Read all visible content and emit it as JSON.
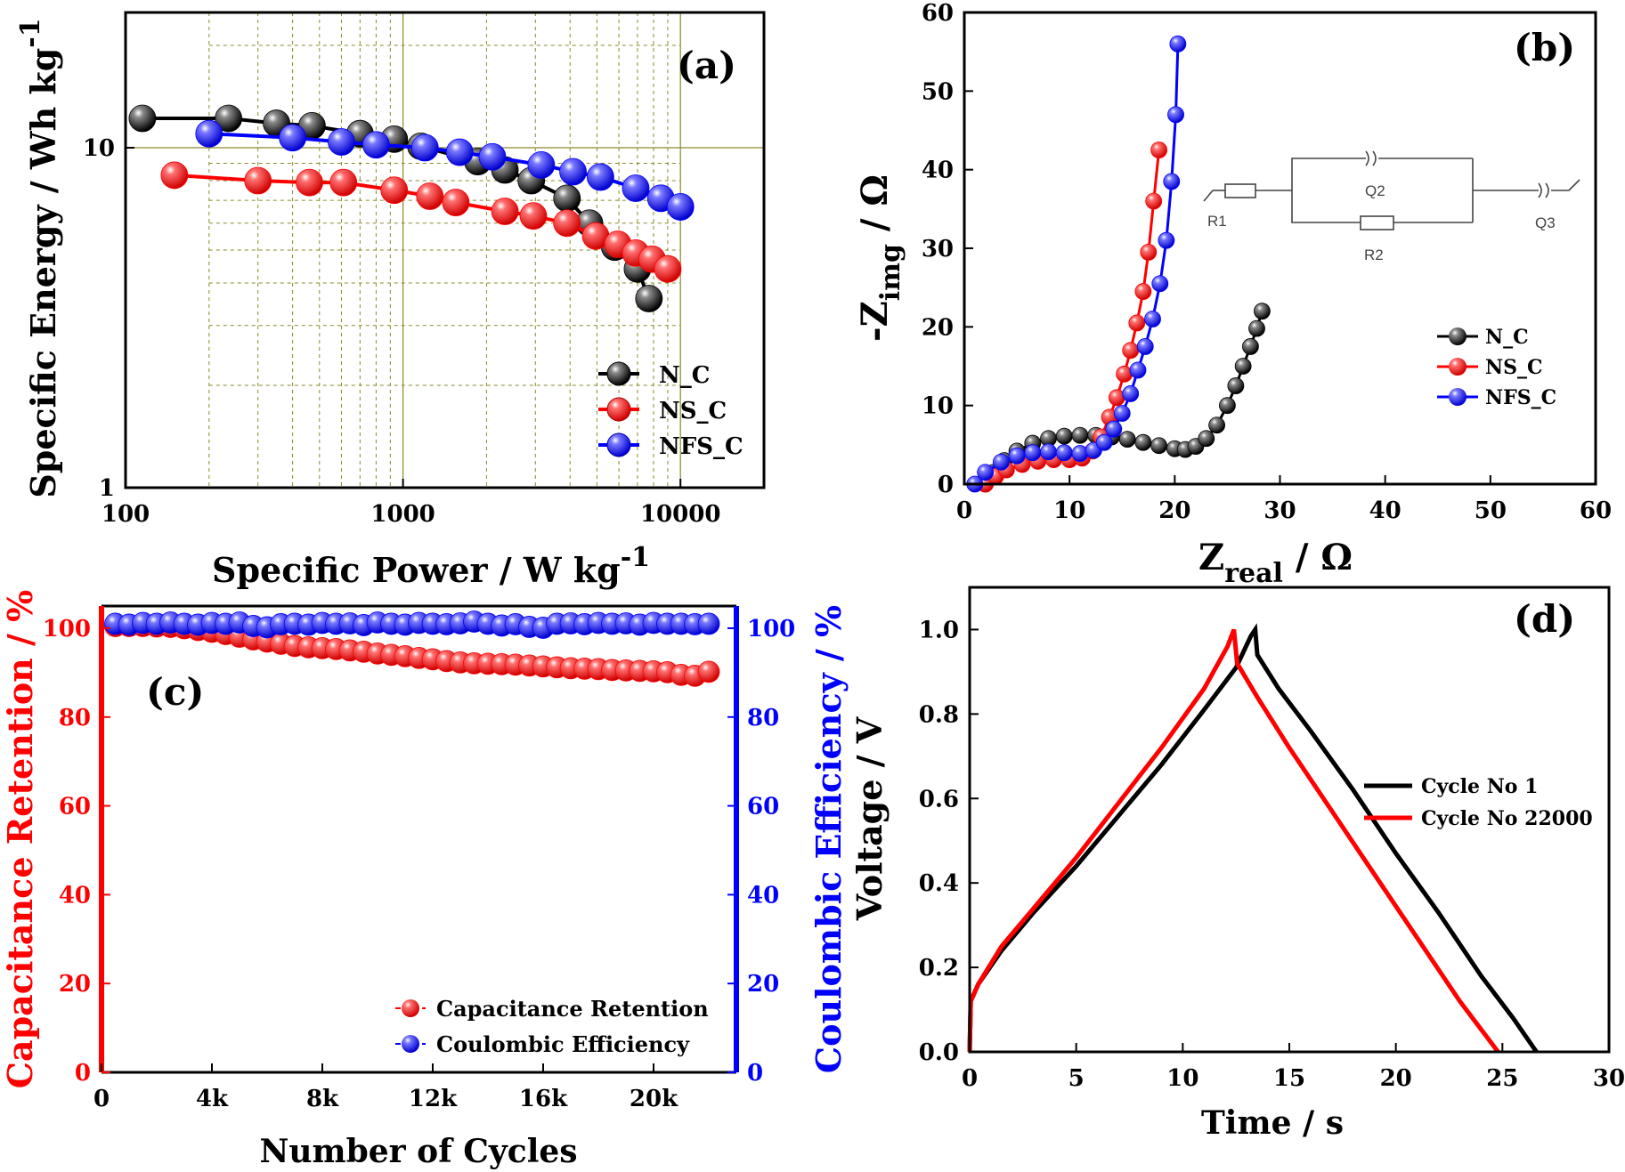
{
  "chart_data": [
    {
      "id": "a",
      "type": "scatter",
      "panel_label": "(a)",
      "xlabel": "Specific Power / W kg",
      "xlabel_sup": "-1",
      "ylabel": "Specific Energy / Wh kg",
      "ylabel_sup": "-1",
      "xscale": "log",
      "yscale": "log",
      "xlim": [
        100,
        20000
      ],
      "ylim": [
        1,
        25
      ],
      "xticks": [
        100,
        1000,
        10000
      ],
      "xtick_labels": [
        "100",
        "1000",
        "10000"
      ],
      "yticks": [
        1,
        10
      ],
      "ytick_labels": [
        "1",
        "10"
      ],
      "grid": true,
      "legend_position": "right",
      "series": [
        {
          "name": "N_C",
          "color": "#000000",
          "x": [
            115,
            235,
            350,
            470,
            700,
            930,
            1160,
            1860,
            2330,
            2900,
            3900,
            4700,
            5800,
            7000,
            7700
          ],
          "y": [
            12.2,
            12.2,
            11.8,
            11.6,
            11.0,
            10.6,
            10.1,
            9.1,
            8.6,
            8.0,
            7.1,
            6.0,
            5.1,
            4.4,
            3.6
          ]
        },
        {
          "name": "NS_C",
          "color": "#ff0000",
          "x": [
            150,
            300,
            460,
            610,
            930,
            1250,
            1550,
            2330,
            2950,
            3900,
            4950,
            5950,
            6900,
            7900,
            9000
          ],
          "y": [
            8.3,
            8.0,
            7.9,
            7.9,
            7.5,
            7.2,
            6.9,
            6.5,
            6.3,
            6.0,
            5.5,
            5.2,
            4.9,
            4.7,
            4.4
          ]
        },
        {
          "name": "NFS_C",
          "color": "#0000ff",
          "x": [
            200,
            400,
            600,
            800,
            1200,
            1600,
            2100,
            3150,
            4100,
            5150,
            6900,
            8500,
            10000
          ],
          "y": [
            11.0,
            10.7,
            10.4,
            10.2,
            10.0,
            9.7,
            9.4,
            8.9,
            8.5,
            8.2,
            7.6,
            7.1,
            6.7
          ]
        }
      ]
    },
    {
      "id": "b",
      "type": "line",
      "panel_label": "(b)",
      "xlabel": "Z",
      "xlabel_sub": "real",
      "xlabel_unit": " / Ω",
      "ylabel": "-Z",
      "ylabel_sub": "img",
      "ylabel_unit": " / Ω",
      "xlim": [
        0,
        60
      ],
      "ylim": [
        0,
        60
      ],
      "xticks": [
        0,
        10,
        20,
        30,
        40,
        50,
        60
      ],
      "yticks": [
        0,
        10,
        20,
        30,
        40,
        50,
        60
      ],
      "legend_position": "right",
      "circuit_labels": [
        "R1",
        "Q2",
        "R2",
        "Q3"
      ],
      "series": [
        {
          "name": "N_C",
          "color": "#000000",
          "x": [
            2.0,
            2.8,
            3.8,
            5.0,
            6.5,
            8.0,
            9.5,
            11.0,
            12.5,
            14.0,
            15.5,
            17.0,
            18.5,
            20.0,
            21.0,
            22.0,
            23.0,
            24.0,
            25.0,
            25.8,
            26.5,
            27.2,
            27.8,
            28.3
          ],
          "y": [
            0,
            1.5,
            3.0,
            4.2,
            5.2,
            5.8,
            6.1,
            6.2,
            6.2,
            6.0,
            5.7,
            5.3,
            4.9,
            4.5,
            4.4,
            4.8,
            5.8,
            7.5,
            10.0,
            12.5,
            15.0,
            17.5,
            19.8,
            22.0
          ]
        },
        {
          "name": "NS_C",
          "color": "#ff0000",
          "x": [
            2.0,
            3.0,
            4.0,
            5.5,
            7.0,
            8.5,
            10.0,
            11.2,
            12.2,
            13.0,
            13.8,
            14.5,
            15.2,
            15.8,
            16.4,
            17.0,
            17.5,
            18.0,
            18.5
          ],
          "y": [
            0,
            1.0,
            1.8,
            2.5,
            2.9,
            3.1,
            3.1,
            3.3,
            4.2,
            6.0,
            8.5,
            11.0,
            14.0,
            17.0,
            20.5,
            24.5,
            29.5,
            36.0,
            42.5
          ]
        },
        {
          "name": "NFS_C",
          "color": "#0000ff",
          "x": [
            1.0,
            2.0,
            3.5,
            5.0,
            6.5,
            8.0,
            9.5,
            11.0,
            12.3,
            13.3,
            14.2,
            15.0,
            15.8,
            16.5,
            17.2,
            17.9,
            18.6,
            19.2,
            19.7,
            20.1,
            20.3
          ],
          "y": [
            0,
            1.5,
            2.8,
            3.6,
            4.0,
            4.1,
            4.0,
            3.9,
            4.3,
            5.3,
            7.0,
            9.0,
            11.5,
            14.5,
            17.5,
            21.0,
            25.5,
            31.0,
            38.5,
            47.0,
            56.0
          ]
        }
      ]
    },
    {
      "id": "c",
      "type": "scatter",
      "panel_label": "(c)",
      "xlabel": "Number of Cycles",
      "ylabel_left": "Capacitance Retention / %",
      "ylabel_right": "Coulombic Efficiency / %",
      "xlim": [
        0,
        23000
      ],
      "ylim": [
        0,
        105
      ],
      "xticks": [
        0,
        4000,
        8000,
        12000,
        16000,
        20000
      ],
      "xtick_labels": [
        "0",
        "4k",
        "8k",
        "12k",
        "16k",
        "20k"
      ],
      "yticks": [
        0,
        20,
        40,
        60,
        80,
        100
      ],
      "ytick_labels": [
        "0",
        "20",
        "40",
        "60",
        "80",
        "100"
      ],
      "legend_position": "bottom-right",
      "series": [
        {
          "name": "Capacitance Retention",
          "color": "#ff0000",
          "axis": "left",
          "x": [
            500,
            1000,
            1500,
            2000,
            2500,
            3000,
            3500,
            4000,
            4500,
            5000,
            5500,
            6000,
            6500,
            7000,
            7500,
            8000,
            8500,
            9000,
            9500,
            10000,
            10500,
            11000,
            11500,
            12000,
            12500,
            13000,
            13500,
            14000,
            14500,
            15000,
            15500,
            16000,
            16500,
            17000,
            17500,
            18000,
            18500,
            19000,
            19500,
            20000,
            20500,
            21000,
            21500,
            22000
          ],
          "y": [
            100.5,
            100.5,
            100.5,
            100.4,
            100.3,
            100.0,
            99.6,
            99.2,
            98.7,
            98.1,
            97.5,
            97.0,
            96.5,
            96.0,
            95.7,
            95.5,
            95.3,
            95.0,
            94.7,
            94.3,
            94.0,
            93.7,
            93.3,
            93.0,
            92.6,
            92.3,
            92.1,
            92.0,
            91.9,
            91.8,
            91.6,
            91.4,
            91.2,
            91.0,
            90.9,
            90.8,
            90.6,
            90.5,
            90.4,
            90.3,
            90.1,
            89.5,
            89.3,
            90.2
          ]
        },
        {
          "name": "Coulombic Efficiency",
          "color": "#0000ff",
          "axis": "right",
          "x": [
            500,
            1000,
            1500,
            2000,
            2500,
            3000,
            3500,
            4000,
            4500,
            5000,
            5500,
            6000,
            6500,
            7000,
            7500,
            8000,
            8500,
            9000,
            9500,
            10000,
            10500,
            11000,
            11500,
            12000,
            12500,
            13000,
            13500,
            14000,
            14500,
            15000,
            15500,
            16000,
            16500,
            17000,
            17500,
            18000,
            18500,
            19000,
            19500,
            20000,
            20500,
            21000,
            21500,
            22000
          ],
          "y": [
            101.0,
            100.8,
            101.2,
            101.0,
            101.3,
            101.0,
            100.8,
            101.2,
            101.0,
            101.3,
            100.5,
            100.2,
            100.9,
            101.0,
            100.8,
            101.2,
            101.0,
            101.1,
            100.7,
            101.3,
            101.0,
            100.8,
            101.2,
            101.0,
            100.9,
            101.1,
            101.5,
            101.0,
            100.6,
            100.9,
            100.3,
            100.1,
            101.0,
            101.1,
            100.9,
            101.2,
            101.0,
            101.1,
            100.8,
            101.2,
            101.0,
            101.0,
            100.9,
            101.0
          ]
        }
      ]
    },
    {
      "id": "d",
      "type": "line",
      "panel_label": "(d)",
      "xlabel": "Time / s",
      "ylabel": "Voltage / V",
      "xlim": [
        0,
        30
      ],
      "ylim": [
        0,
        1.1
      ],
      "xticks": [
        0,
        5,
        10,
        15,
        20,
        25,
        30
      ],
      "yticks": [
        0.0,
        0.2,
        0.4,
        0.6,
        0.8,
        1.0
      ],
      "ytick_labels": [
        "0.0",
        "0.2",
        "0.4",
        "0.6",
        "0.8",
        "1.0"
      ],
      "legend_position": "right",
      "series": [
        {
          "name": "Cycle No 1",
          "color": "#000000",
          "x": [
            0,
            0.05,
            0.4,
            1.5,
            3,
            5,
            7,
            9,
            11,
            12.5,
            13.2,
            13.4,
            13.5,
            14.5,
            16,
            18,
            20,
            22,
            24,
            25.5,
            26.6
          ],
          "y": [
            0.0,
            0.12,
            0.16,
            0.24,
            0.33,
            0.44,
            0.56,
            0.68,
            0.81,
            0.91,
            0.985,
            1.0,
            0.94,
            0.86,
            0.76,
            0.62,
            0.47,
            0.33,
            0.18,
            0.08,
            0.0
          ]
        },
        {
          "name": "Cycle No 22000",
          "color": "#ff0000",
          "x": [
            0,
            0.05,
            0.4,
            1.5,
            3,
            5,
            7,
            9,
            11,
            12.1,
            12.4,
            12.55,
            13.5,
            15,
            17,
            19,
            21,
            23,
            24.8
          ],
          "y": [
            0.0,
            0.12,
            0.16,
            0.25,
            0.34,
            0.46,
            0.59,
            0.72,
            0.86,
            0.96,
            1.0,
            0.92,
            0.84,
            0.72,
            0.57,
            0.42,
            0.27,
            0.12,
            0.0
          ]
        }
      ]
    }
  ]
}
